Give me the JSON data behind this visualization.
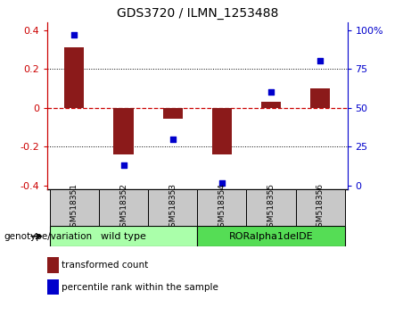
{
  "title": "GDS3720 / ILMN_1253488",
  "samples": [
    "GSM518351",
    "GSM518352",
    "GSM518353",
    "GSM518354",
    "GSM518355",
    "GSM518356"
  ],
  "bar_values": [
    0.31,
    -0.24,
    -0.055,
    -0.24,
    0.03,
    0.1
  ],
  "scatter_values": [
    97,
    13,
    30,
    2,
    60,
    80
  ],
  "ylim_left": [
    -0.42,
    0.44
  ],
  "ylim_right": [
    -5.25,
    110
  ],
  "yticks_left": [
    -0.4,
    -0.2,
    0.0,
    0.2,
    0.4
  ],
  "yticks_left_labels": [
    "-0.4",
    "-0.2",
    "0",
    "0.2",
    "0.4"
  ],
  "yticks_right": [
    0,
    25,
    50,
    75,
    100
  ],
  "yticks_right_labels": [
    "0",
    "25",
    "50",
    "75",
    "100%"
  ],
  "bar_color": "#8B1A1A",
  "scatter_color": "#0000CC",
  "zero_line_color": "#CC0000",
  "grid_color": "black",
  "group1_label": "wild type",
  "group2_label": "RORalpha1delDE",
  "group1_color": "#AAFFAA",
  "group2_color": "#55DD55",
  "group_label": "genotype/variation",
  "legend_bar": "transformed count",
  "legend_scatter": "percentile rank within the sample",
  "left_tick_color": "#CC0000",
  "right_tick_color": "#0000CC",
  "sample_box_color": "#C8C8C8",
  "bar_width": 0.4
}
